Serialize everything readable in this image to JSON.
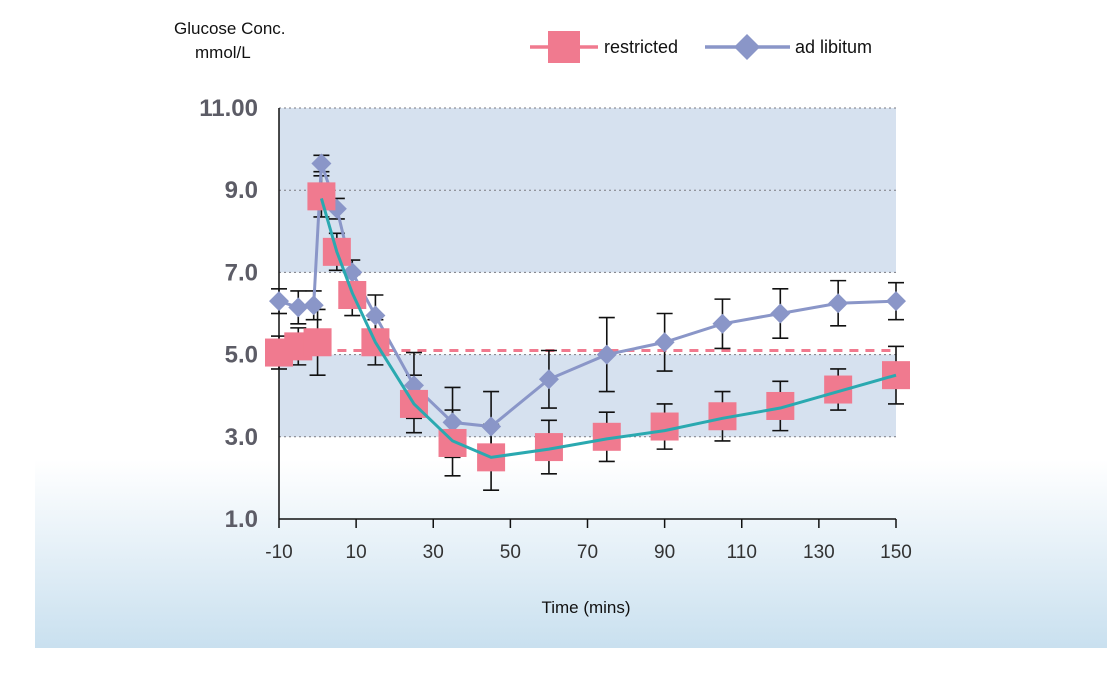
{
  "chart_data": {
    "type": "line",
    "ylabel_lines": [
      "Glucose Conc.",
      "mmol/L"
    ],
    "xlabel": "Time (mins)",
    "xlim": [
      -10,
      150
    ],
    "ylim": [
      1.0,
      11.0
    ],
    "x_ticks": [
      -10,
      10,
      30,
      50,
      70,
      90,
      110,
      130,
      150
    ],
    "x_tick_labels": [
      "-10",
      "10",
      "30",
      "50",
      "70",
      "90",
      "110",
      "130",
      "150"
    ],
    "y_ticks": [
      1.0,
      3.0,
      5.0,
      7.0,
      9.0,
      11.0
    ],
    "y_tick_labels": [
      "1.0",
      "3.0",
      "5.0",
      "7.0",
      "9.0",
      "11.00"
    ],
    "bands": [
      [
        3.0,
        5.0
      ],
      [
        7.0,
        9.0
      ],
      [
        9.0,
        11.0
      ]
    ],
    "band_color": "#d6e1ef",
    "baseline": 5.1,
    "legend_position": "top-right",
    "series": [
      {
        "name": "restricted",
        "marker": "square",
        "color": "#f07a8f",
        "x": [
          -10,
          -5,
          0,
          1,
          5,
          9,
          15,
          25,
          35,
          45,
          60,
          75,
          90,
          105,
          120,
          135,
          150
        ],
        "y": [
          5.05,
          5.2,
          5.3,
          8.85,
          7.5,
          6.45,
          5.3,
          3.8,
          2.85,
          2.5,
          2.75,
          3.0,
          3.25,
          3.5,
          3.75,
          4.15,
          4.5
        ],
        "err": [
          0.4,
          0.45,
          0.8,
          0.5,
          0.45,
          0.5,
          0.55,
          0.7,
          0.8,
          0.8,
          0.65,
          0.6,
          0.55,
          0.6,
          0.6,
          0.5,
          0.7
        ]
      },
      {
        "name": "ad libitum",
        "marker": "diamond",
        "color": "#8a96c8",
        "x": [
          -10,
          -5,
          -1,
          1,
          5,
          9,
          15,
          25,
          35,
          45,
          60,
          75,
          90,
          105,
          120,
          135,
          150
        ],
        "y": [
          6.3,
          6.15,
          6.2,
          9.65,
          8.55,
          7.0,
          5.95,
          4.25,
          3.35,
          3.25,
          4.4,
          5.0,
          5.3,
          5.75,
          6.0,
          6.25,
          6.3
        ],
        "err": [
          0.3,
          0.4,
          0.35,
          0.2,
          0.25,
          0.3,
          0.5,
          0.8,
          0.85,
          0.85,
          0.7,
          0.9,
          0.7,
          0.6,
          0.6,
          0.55,
          0.45
        ]
      },
      {
        "color": "#2aa9b0",
        "x": [
          1,
          5,
          9,
          15,
          25,
          35,
          45,
          60,
          75,
          90,
          105,
          120,
          135,
          150
        ],
        "y": [
          8.8,
          7.5,
          6.5,
          5.3,
          3.8,
          2.9,
          2.5,
          2.7,
          2.95,
          3.15,
          3.45,
          3.7,
          4.1,
          4.5
        ]
      }
    ]
  }
}
